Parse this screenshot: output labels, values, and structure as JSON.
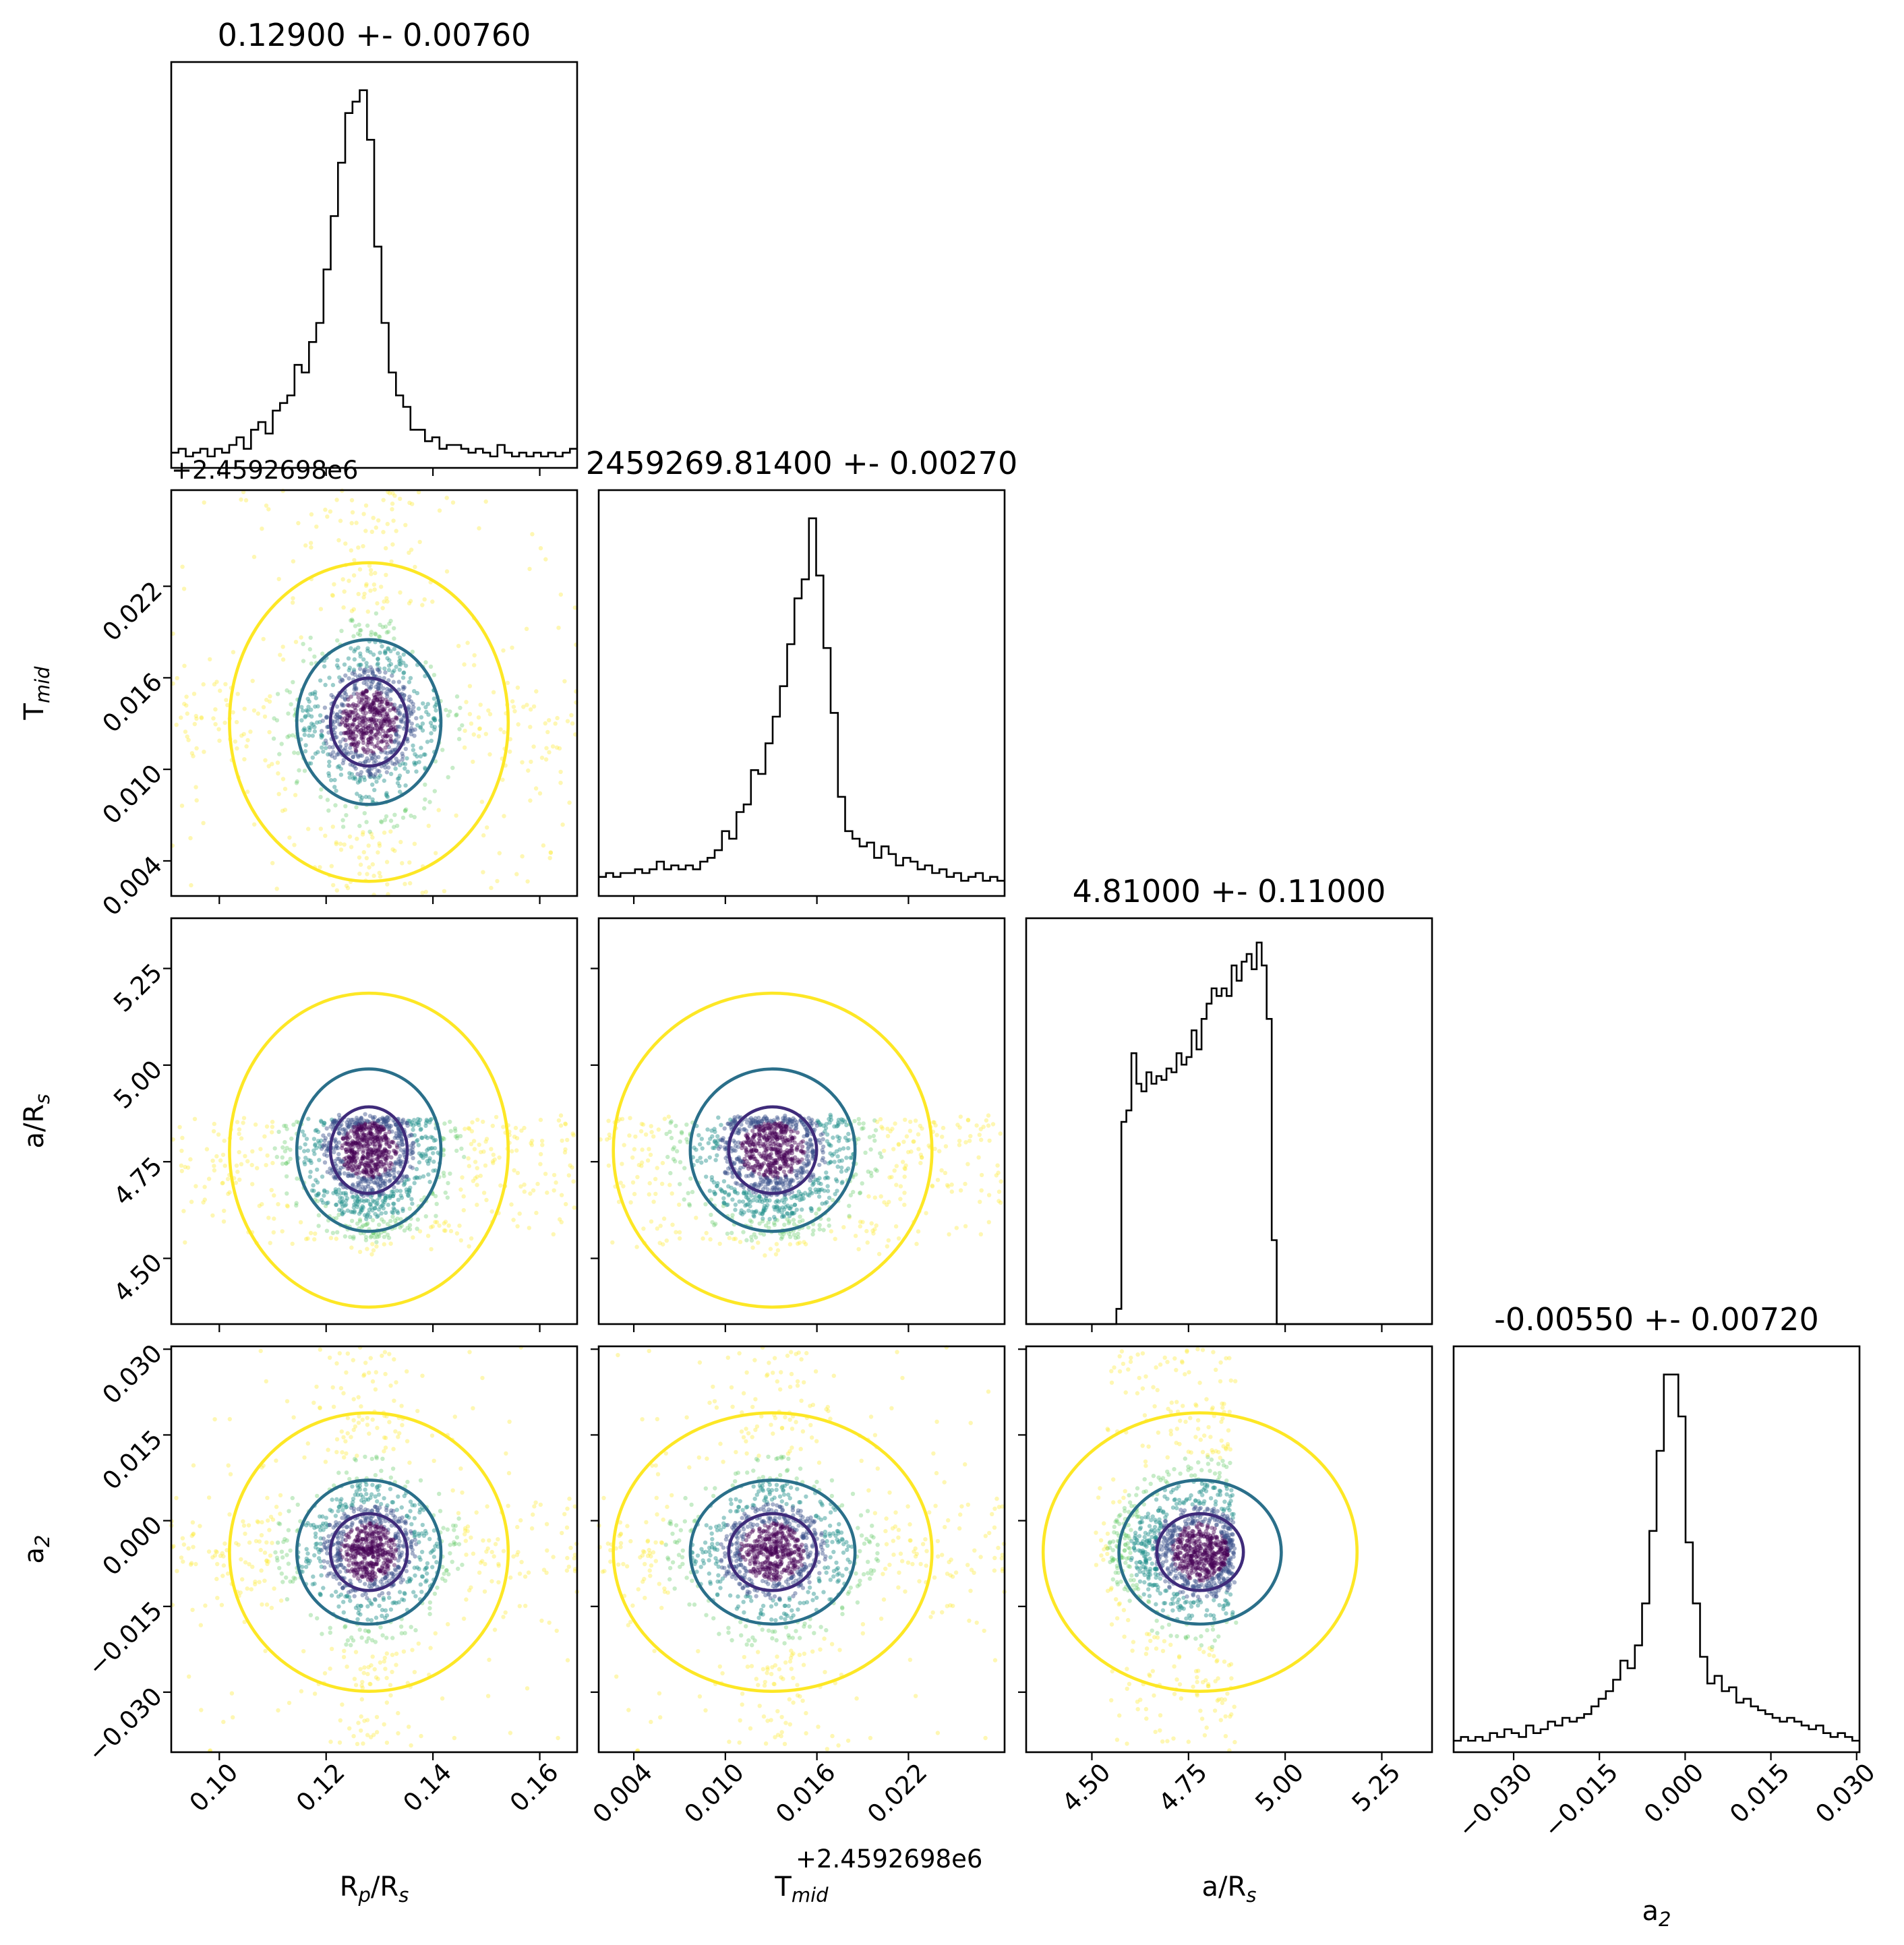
{
  "chart_data": {
    "type": "corner",
    "parameters": [
      {
        "key": "rp",
        "xlabel_main": "R",
        "xlabel_sub": "p",
        "xlabel_tail": "/R",
        "xlabel_tailsub": "s",
        "title": "0.12900 +- 0.00760",
        "range": [
          0.091,
          0.167
        ],
        "ticks": [
          0.1,
          0.12,
          0.14,
          0.16
        ],
        "ticklabels": [
          "0.10",
          "0.12",
          "0.14",
          "0.16"
        ],
        "mean": 0.128,
        "sigma": 0.0045,
        "hist": [
          0.04,
          0.05,
          0.03,
          0.04,
          0.05,
          0.03,
          0.05,
          0.04,
          0.06,
          0.08,
          0.05,
          0.1,
          0.12,
          0.09,
          0.15,
          0.17,
          0.19,
          0.27,
          0.25,
          0.33,
          0.38,
          0.52,
          0.66,
          0.8,
          0.93,
          0.96,
          0.99,
          0.86,
          0.58,
          0.38,
          0.25,
          0.19,
          0.16,
          0.1,
          0.1,
          0.07,
          0.08,
          0.05,
          0.06,
          0.06,
          0.05,
          0.04,
          0.05,
          0.04,
          0.03,
          0.06,
          0.04,
          0.03,
          0.04,
          0.03,
          0.04,
          0.03,
          0.04,
          0.03,
          0.04,
          0.05
        ],
        "hist_floor": 0.0
      },
      {
        "key": "tmid",
        "xlabel_main": "T",
        "xlabel_sub": "mid",
        "xlabel_tail": "",
        "xlabel_tailsub": "",
        "offset_label": "+2.4592698e6",
        "title": "2459269.81400 +- 0.00270",
        "range": [
          0.0017,
          0.0283
        ],
        "ticks": [
          0.004,
          0.01,
          0.016,
          0.022
        ],
        "ticklabels": [
          "0.004",
          "0.010",
          "0.016",
          "0.022"
        ],
        "mean": 0.0131,
        "sigma": 0.0018,
        "hist": [
          0.05,
          0.06,
          0.05,
          0.06,
          0.06,
          0.07,
          0.06,
          0.07,
          0.09,
          0.07,
          0.08,
          0.07,
          0.08,
          0.07,
          0.09,
          0.1,
          0.12,
          0.17,
          0.15,
          0.22,
          0.24,
          0.33,
          0.32,
          0.4,
          0.47,
          0.55,
          0.66,
          0.78,
          0.83,
          0.99,
          0.84,
          0.65,
          0.48,
          0.26,
          0.17,
          0.15,
          0.13,
          0.14,
          0.1,
          0.13,
          0.11,
          0.08,
          0.1,
          0.09,
          0.07,
          0.08,
          0.06,
          0.07,
          0.05,
          0.06,
          0.04,
          0.05,
          0.06,
          0.04,
          0.05,
          0.04
        ],
        "hist_floor": 0.0
      },
      {
        "key": "ars",
        "xlabel_main": "a/R",
        "xlabel_sub": "s",
        "xlabel_tail": "",
        "xlabel_tailsub": "",
        "title": "4.81000 +- 0.11000",
        "range": [
          4.33,
          5.38
        ],
        "ticks": [
          4.5,
          4.75,
          5.0,
          5.25
        ],
        "ticklabels": [
          "4.50",
          "4.75",
          "5.00",
          "5.25"
        ],
        "bounds": [
          4.485,
          4.865
        ],
        "hist": [
          0.0,
          0.0,
          0.0,
          0.0,
          0.0,
          0.0,
          0.0,
          0.0,
          0.0,
          0.0,
          0.0,
          0.0,
          0.0,
          0.0,
          0.0,
          0.0,
          0.0,
          0.0,
          0.04,
          0.53,
          0.56,
          0.71,
          0.63,
          0.61,
          0.66,
          0.63,
          0.65,
          0.64,
          0.67,
          0.66,
          0.71,
          0.68,
          0.7,
          0.77,
          0.72,
          0.8,
          0.84,
          0.88,
          0.86,
          0.88,
          0.86,
          0.94,
          0.9,
          0.95,
          0.97,
          0.93,
          1.0,
          0.94,
          0.8,
          0.22,
          0.0,
          0.0,
          0.0,
          0.0,
          0.0,
          0.0,
          0.0,
          0.0,
          0.0,
          0.0,
          0.0,
          0.0,
          0.0,
          0.0,
          0.0,
          0.0,
          0.0,
          0.0,
          0.0,
          0.0,
          0.0,
          0.0,
          0.0,
          0.0,
          0.0,
          0.0,
          0.0,
          0.0,
          0.0,
          0.0,
          0.0
        ],
        "hist_floor": 0.0
      },
      {
        "key": "a2",
        "xlabel_main": "a",
        "xlabel_sub": "2",
        "xlabel_tail": "",
        "xlabel_tailsub": "",
        "title": "-0.00550 +- 0.00720",
        "range": [
          -0.0405,
          0.0305
        ],
        "ticks": [
          -0.03,
          -0.015,
          0.0,
          0.015,
          0.03
        ],
        "ticklabels": [
          "−0.030",
          "−0.015",
          "0.000",
          "0.015",
          "0.030"
        ],
        "mean": -0.0055,
        "sigma": 0.0042,
        "hist": [
          0.03,
          0.04,
          0.03,
          0.04,
          0.03,
          0.05,
          0.04,
          0.06,
          0.05,
          0.04,
          0.07,
          0.05,
          0.06,
          0.08,
          0.07,
          0.09,
          0.08,
          0.09,
          0.1,
          0.12,
          0.14,
          0.16,
          0.19,
          0.24,
          0.22,
          0.28,
          0.39,
          0.58,
          0.79,
          0.99,
          0.99,
          0.88,
          0.55,
          0.39,
          0.25,
          0.18,
          0.2,
          0.16,
          0.17,
          0.13,
          0.14,
          0.12,
          0.11,
          0.1,
          0.09,
          0.08,
          0.09,
          0.08,
          0.07,
          0.06,
          0.07,
          0.05,
          0.04,
          0.05,
          0.04,
          0.03
        ],
        "hist_floor": 0.0
      }
    ],
    "color_map": [
      "#440154",
      "#3b528b",
      "#21918c",
      "#5ec962",
      "#fde725"
    ],
    "contour_colors": {
      "inner": "#3f2b7a",
      "middle": "#2a6f8a",
      "outer": "#fde725"
    },
    "grid": false,
    "legend": "none"
  }
}
